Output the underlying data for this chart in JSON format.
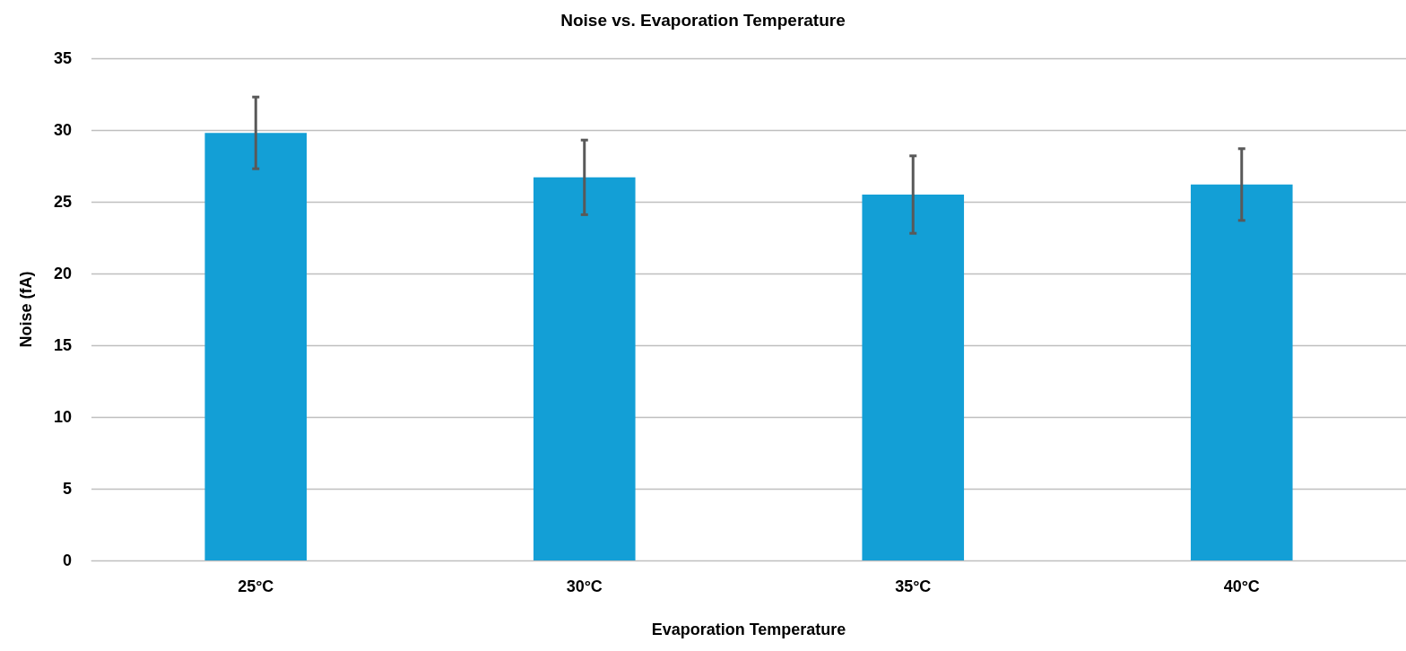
{
  "chart_data": {
    "type": "bar",
    "title": "Noise vs. Evaporation Temperature",
    "xlabel": "Evaporation Temperature",
    "ylabel": "Noise (fA)",
    "categories": [
      "25°C",
      "30°C",
      "35°C",
      "40°C"
    ],
    "values": [
      29.8,
      26.7,
      25.5,
      26.2
    ],
    "errors": [
      2.5,
      2.6,
      2.7,
      2.5
    ],
    "color": "#139fd6",
    "ylim": [
      0,
      35
    ],
    "yticks": [
      0,
      5,
      10,
      15,
      20,
      25,
      30,
      35
    ],
    "grid": "y"
  }
}
